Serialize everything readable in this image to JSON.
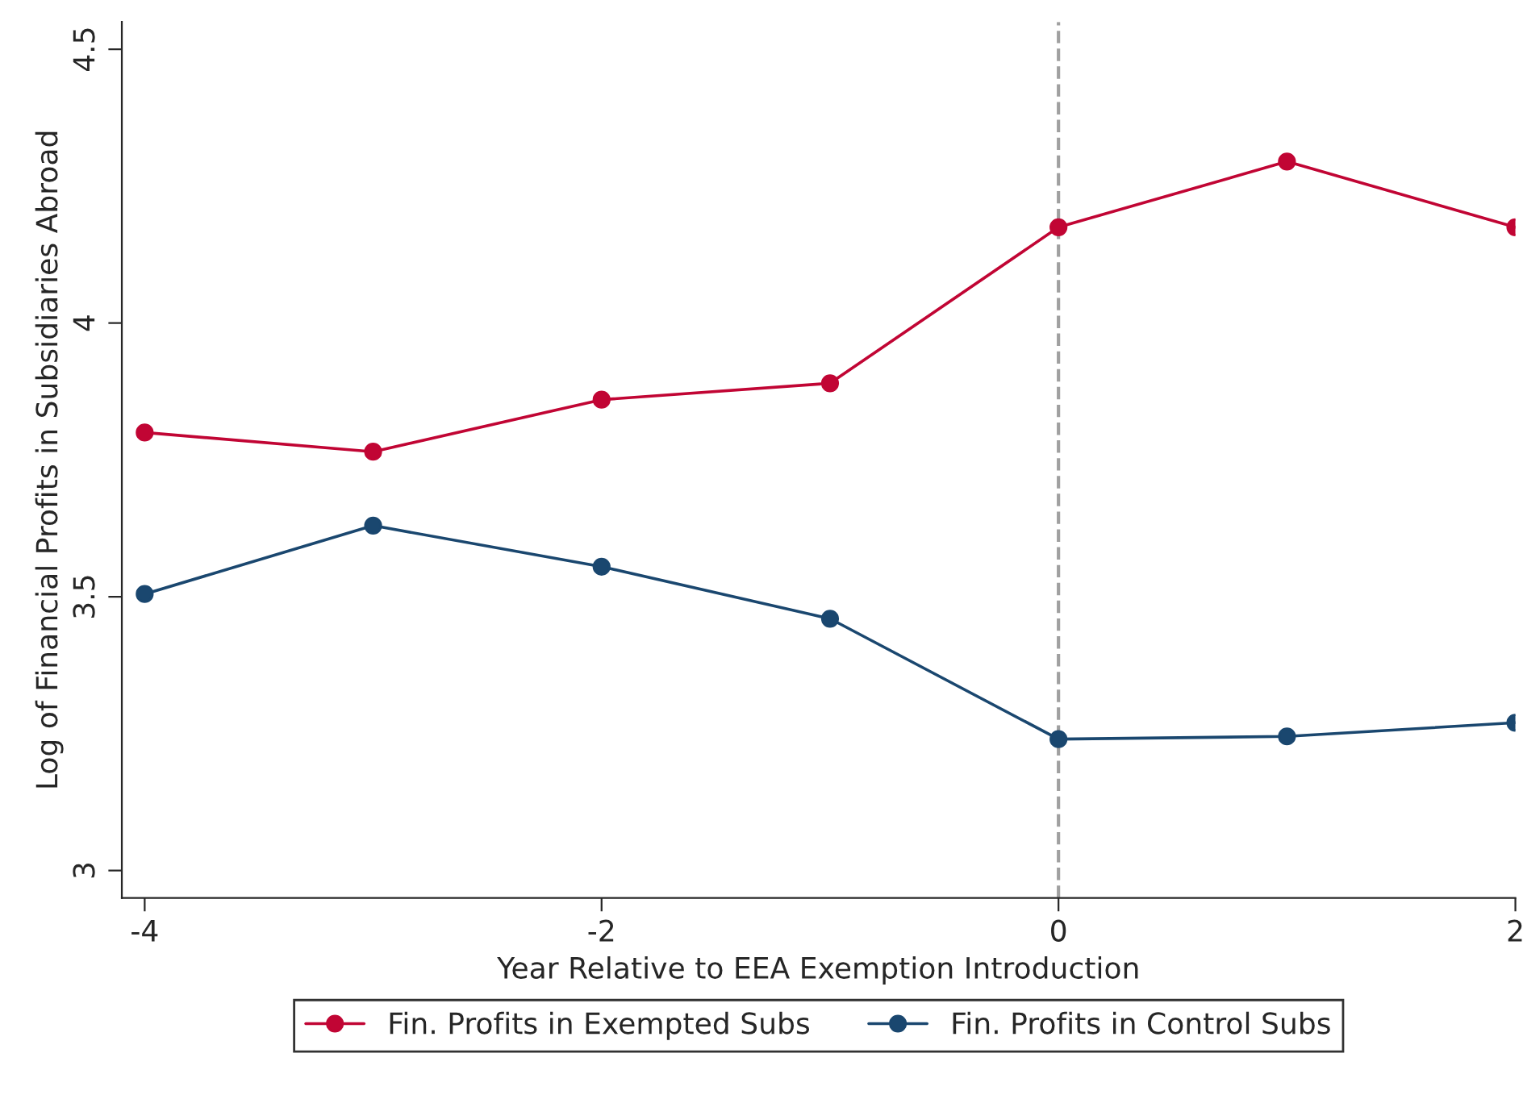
{
  "chart_data": {
    "type": "line",
    "xlabel": "Year Relative to EEA Exemption Introduction",
    "ylabel": "Log of Financial Profits in Subsidiaries Abroad",
    "x": [
      -4,
      -3,
      -2,
      -1,
      0,
      1,
      2
    ],
    "series": [
      {
        "name": "Fin. Profits in Exempted Subs",
        "color": "#c10534",
        "values": [
          3.8,
          3.765,
          3.86,
          3.89,
          4.175,
          4.295,
          4.175
        ]
      },
      {
        "name": "Fin. Profits in Control Subs",
        "color": "#1a476f",
        "values": [
          3.505,
          3.63,
          3.555,
          3.46,
          3.24,
          3.245,
          3.27
        ]
      }
    ],
    "xlim": [
      -4.1,
      2.0
    ],
    "xticks": [
      -4,
      -2,
      0,
      2
    ],
    "ylim": [
      2.95,
      4.55
    ],
    "yticks": [
      3,
      3.5,
      4,
      4.5
    ],
    "ref_lines": [
      {
        "axis": "x",
        "value": 0,
        "color": "#a0a0a0",
        "line_style": "dashed"
      }
    ],
    "marker": "circle",
    "line_style": "solid",
    "grid": false,
    "legend": "bottom"
  }
}
